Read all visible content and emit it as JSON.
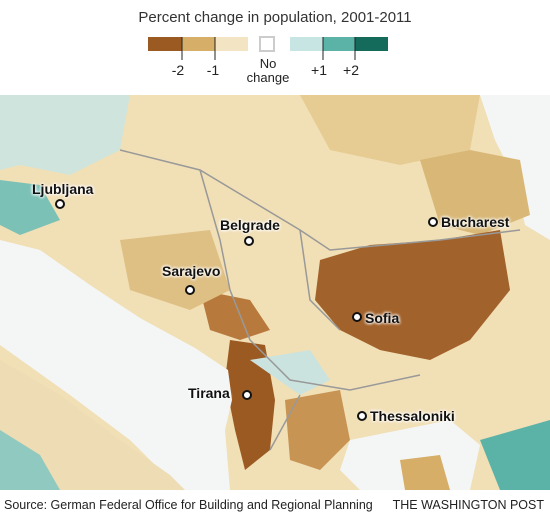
{
  "legend": {
    "title": "Percent change in population, 2001-2011",
    "labels": [
      "-2",
      "-1",
      "No change",
      "+1",
      "+2"
    ]
  },
  "cities": [
    "Ljubljana",
    "Belgrade",
    "Bucharest",
    "Sarajevo",
    "Sofia",
    "Tirana",
    "Thessaloniki"
  ],
  "source": "Source: German Federal Office for Building and Regional Planning",
  "credit": "THE WASHINGTON POST"
}
